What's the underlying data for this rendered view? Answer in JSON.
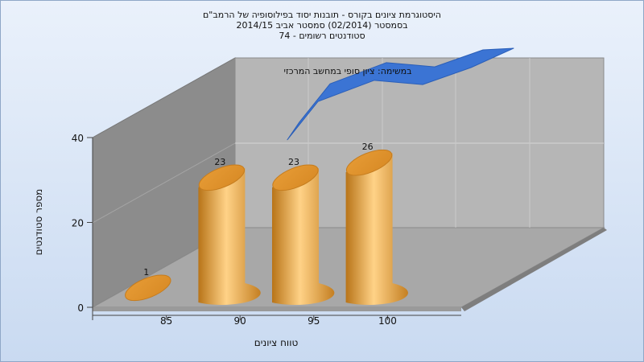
{
  "chart_data": {
    "type": "bar",
    "title_lines": [
      "היסטוגרמת ציונים בקורס - תובנות יסוד בפילוסופיה של הרמב\"ם",
      "בסמסטר  (02/2014)  סמסטר אביב 2014/15",
      "סטודנטים רשומים - 74"
    ],
    "annotation": "במשימה: ציון סופי במחשב המרכזי",
    "xlabel": "טווח ציונים",
    "ylabel": "מספר סטודנטים",
    "x_ticks": [
      "85",
      "90",
      "95",
      "100"
    ],
    "y_ticks": [
      0,
      20,
      40
    ],
    "ylim": [
      0,
      40
    ],
    "bars": [
      {
        "label": "1",
        "value": 1
      },
      {
        "label": "23",
        "value": 23
      },
      {
        "label": "23",
        "value": 23
      },
      {
        "label": "26",
        "value": 26
      }
    ],
    "line": {
      "values": [
        23,
        32,
        37,
        36,
        40
      ]
    },
    "colors": {
      "bar": "#f2b25a",
      "line": "#3b74d4",
      "back_wall": "#b4b4b4",
      "side_wall": "#8a8a8a",
      "floor": "#a9a9a9"
    }
  }
}
